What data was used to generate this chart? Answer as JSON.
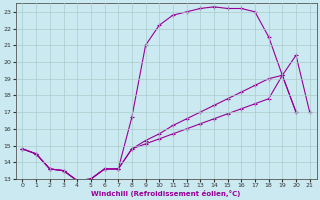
{
  "xlabel": "Windchill (Refroidissement éolien,°C)",
  "background_color": "#cbe9f0",
  "line_color": "#990099",
  "grid_color": "#aacccc",
  "xlim": [
    -0.5,
    21.5
  ],
  "ylim": [
    13,
    23.5
  ],
  "xticks": [
    0,
    1,
    2,
    3,
    4,
    5,
    6,
    7,
    8,
    9,
    10,
    11,
    12,
    13,
    14,
    15,
    16,
    17,
    18,
    19,
    20,
    21
  ],
  "yticks": [
    13,
    14,
    15,
    16,
    17,
    18,
    19,
    20,
    21,
    22,
    23
  ],
  "series1": [
    [
      0,
      14.8
    ],
    [
      1,
      14.5
    ],
    [
      2,
      13.6
    ],
    [
      3,
      13.5
    ],
    [
      4,
      12.9
    ],
    [
      5,
      13.0
    ],
    [
      6,
      13.6
    ],
    [
      7,
      13.6
    ],
    [
      8,
      16.7
    ],
    [
      9,
      21.0
    ],
    [
      10,
      22.2
    ],
    [
      11,
      22.8
    ],
    [
      12,
      23.0
    ],
    [
      13,
      23.2
    ],
    [
      14,
      23.3
    ],
    [
      15,
      23.2
    ],
    [
      16,
      23.2
    ],
    [
      17,
      23.0
    ],
    [
      18,
      21.5
    ],
    [
      19,
      19.2
    ],
    [
      20,
      17.0
    ]
  ],
  "series2": [
    [
      0,
      14.8
    ],
    [
      1,
      14.5
    ],
    [
      2,
      13.6
    ],
    [
      3,
      13.5
    ],
    [
      4,
      12.9
    ],
    [
      5,
      13.0
    ],
    [
      6,
      13.6
    ],
    [
      7,
      13.6
    ],
    [
      8,
      14.8
    ],
    [
      9,
      15.3
    ],
    [
      10,
      15.7
    ],
    [
      11,
      16.2
    ],
    [
      12,
      16.6
    ],
    [
      13,
      17.0
    ],
    [
      14,
      17.4
    ],
    [
      15,
      17.8
    ],
    [
      16,
      18.2
    ],
    [
      17,
      18.6
    ],
    [
      18,
      19.0
    ],
    [
      19,
      19.2
    ],
    [
      20,
      20.4
    ],
    [
      21,
      17.0
    ]
  ],
  "series3": [
    [
      0,
      14.8
    ],
    [
      1,
      14.5
    ],
    [
      2,
      13.6
    ],
    [
      3,
      13.5
    ],
    [
      4,
      12.9
    ],
    [
      5,
      13.0
    ],
    [
      6,
      13.6
    ],
    [
      7,
      13.6
    ],
    [
      8,
      14.8
    ],
    [
      9,
      15.1
    ],
    [
      10,
      15.4
    ],
    [
      11,
      15.7
    ],
    [
      12,
      16.0
    ],
    [
      13,
      16.3
    ],
    [
      14,
      16.6
    ],
    [
      15,
      16.9
    ],
    [
      16,
      17.2
    ],
    [
      17,
      17.5
    ],
    [
      18,
      17.8
    ],
    [
      19,
      19.2
    ],
    [
      20,
      17.0
    ]
  ]
}
